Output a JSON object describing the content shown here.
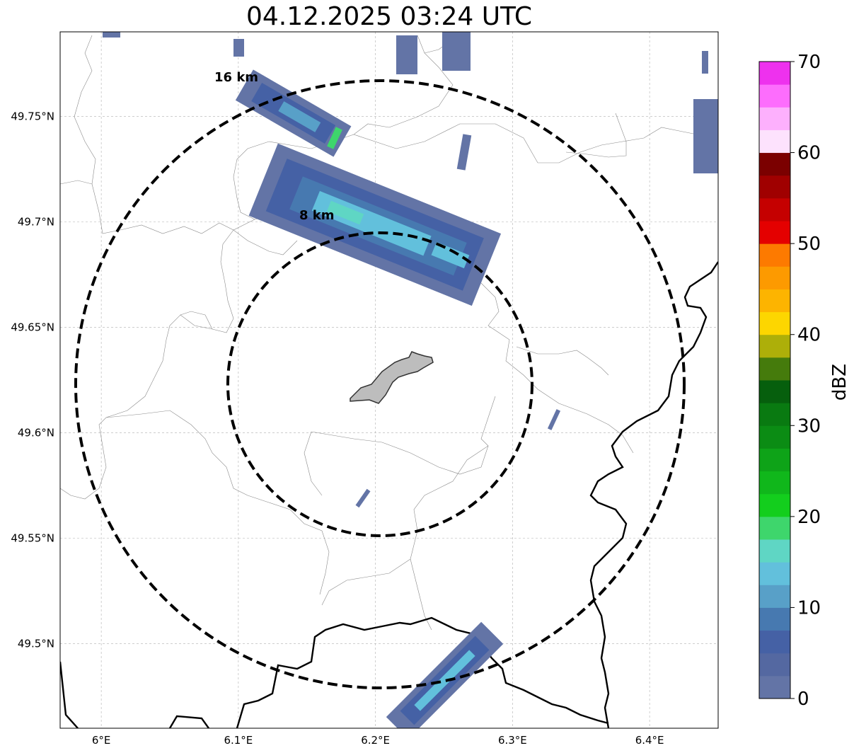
{
  "title": "04.12.2025 03:24 UTC",
  "map": {
    "lon_range": [
      5.97,
      6.45
    ],
    "lat_range": [
      49.46,
      49.79
    ],
    "grid": true,
    "lon_ticks": [
      {
        "value": 6.0,
        "label": "6°E"
      },
      {
        "value": 6.1,
        "label": "6.1°E"
      },
      {
        "value": 6.2,
        "label": "6.2°E"
      },
      {
        "value": 6.3,
        "label": "6.3°E"
      },
      {
        "value": 6.4,
        "label": "6.4°E"
      }
    ],
    "lat_ticks": [
      {
        "value": 49.75,
        "label": "49.75°N"
      },
      {
        "value": 49.7,
        "label": "49.7°N"
      },
      {
        "value": 49.65,
        "label": "49.65°N"
      },
      {
        "value": 49.6,
        "label": "49.6°N"
      },
      {
        "value": 49.55,
        "label": "49.55°N"
      },
      {
        "value": 49.5,
        "label": "49.5°N"
      }
    ],
    "range_rings": [
      {
        "label": "8 km",
        "radius_km": 8
      },
      {
        "label": "16 km",
        "radius_km": 16
      }
    ],
    "radar_center": {
      "lon": 6.2,
      "lat": 49.623
    },
    "city_fill_color": "#bdbdbd"
  },
  "colorbar": {
    "label": "dBZ",
    "min": 0,
    "max": 70,
    "tick_labels": [
      "0",
      "10",
      "20",
      "30",
      "40",
      "50",
      "60",
      "70"
    ],
    "colors": [
      "#6374a6",
      "#5468a1",
      "#4561a5",
      "#4779b0",
      "#58a0c8",
      "#62c0dc",
      "#5fd6c4",
      "#3ed66c",
      "#13ce1d",
      "#10b71b",
      "#0ea318",
      "#0b8c14",
      "#097a11",
      "#065f0d",
      "#457b0c",
      "#adaf09",
      "#fdd600",
      "#fdb400",
      "#fd9a00",
      "#fd7a00",
      "#e40000",
      "#c50000",
      "#a00000",
      "#7b0000",
      "#fde2fd",
      "#fdb0fd",
      "#fd6dfd",
      "#ee31ee"
    ]
  }
}
